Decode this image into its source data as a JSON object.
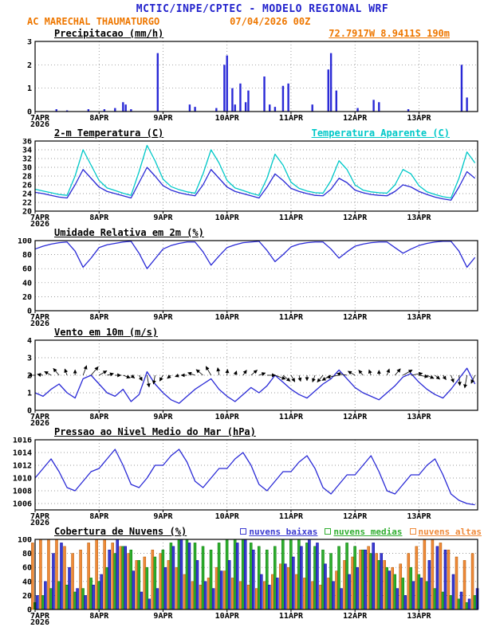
{
  "header": {
    "title": "MCTIC/INPE/CPTEC - MODELO REGIONAL WRF",
    "station": "AC MARECHAL THAUMATURGO",
    "run": "07/04/2026 00Z"
  },
  "colors": {
    "header_blue": "#2222cc",
    "orange": "#ee7700",
    "line_blue": "#2929d6",
    "cyan": "#00c8c8",
    "cloud_low": "#3b3bd1",
    "cloud_low_edge": "#000099",
    "cloud_mid": "#2fae2f",
    "cloud_mid_edge": "#007700",
    "cloud_high": "#ef8a3a",
    "cloud_high_edge": "#b35900"
  },
  "x_axis": {
    "range": [
      0,
      166
    ],
    "ticks": [
      0,
      24,
      48,
      72,
      96,
      120,
      144
    ],
    "tick_labels": [
      "7APR",
      "8APR",
      "9APR",
      "10APR",
      "11APR",
      "12APR",
      "13APR"
    ],
    "year_label": "2026",
    "grid": "dotted"
  },
  "chart_data": [
    {
      "type": "bar",
      "title": "Precipitacao (mm/h)",
      "right_label": "72.7917W 8.9411S 190m",
      "ylim": [
        0,
        3
      ],
      "yticks": [
        0,
        1,
        2,
        3
      ],
      "bar_color": "#2929d6",
      "x_hours": [
        8,
        12,
        20,
        26,
        30,
        33,
        34,
        36,
        46,
        58,
        60,
        68,
        71,
        72,
        74,
        75,
        77,
        79,
        80,
        86,
        88,
        90,
        93,
        95,
        104,
        110,
        111,
        113,
        121,
        127,
        129,
        140,
        160,
        162
      ],
      "values": [
        0.1,
        0.05,
        0.1,
        0.1,
        0.15,
        0.4,
        0.3,
        0.1,
        2.5,
        0.3,
        0.2,
        0.15,
        2.0,
        2.4,
        1.0,
        0.3,
        1.2,
        0.4,
        0.9,
        1.5,
        0.3,
        0.2,
        1.1,
        1.2,
        0.3,
        1.8,
        2.5,
        0.9,
        0.15,
        0.5,
        0.4,
        0.1,
        2.0,
        0.6
      ]
    },
    {
      "type": "line",
      "title": "2-m Temperatura (C)",
      "right_label": "Temperatura Aparente (C)",
      "ylim": [
        20,
        36
      ],
      "yticks": [
        20,
        22,
        24,
        26,
        28,
        30,
        32,
        34,
        36
      ],
      "x_step": 3,
      "series": [
        {
          "name": "2-m Temperatura (C)",
          "color": "#2929d6",
          "values": [
            24.3,
            24.0,
            23.6,
            23.2,
            23.0,
            26.0,
            29.5,
            27.5,
            25.5,
            24.5,
            24.0,
            23.5,
            23.0,
            26.5,
            30.0,
            28.0,
            25.8,
            24.8,
            24.2,
            23.8,
            23.5,
            26.0,
            29.5,
            27.5,
            25.5,
            24.5,
            24.0,
            23.5,
            23.0,
            25.5,
            28.5,
            27.0,
            25.2,
            24.5,
            24.0,
            23.6,
            23.5,
            25.0,
            27.5,
            26.5,
            24.8,
            24.2,
            23.8,
            23.6,
            23.5,
            24.5,
            26.0,
            25.5,
            24.5,
            23.8,
            23.2,
            22.8,
            22.5,
            25.5,
            29.0,
            27.5
          ]
        },
        {
          "name": "Temperatura Aparente (C)",
          "color": "#00c8c8",
          "values": [
            25.0,
            24.6,
            24.2,
            23.8,
            23.6,
            28.0,
            34.0,
            30.5,
            27.0,
            25.3,
            24.7,
            24.1,
            23.6,
            29.0,
            35.0,
            31.5,
            27.3,
            25.6,
            24.9,
            24.4,
            24.1,
            28.5,
            34.0,
            31.0,
            27.0,
            25.3,
            24.7,
            24.1,
            23.6,
            27.5,
            33.0,
            30.5,
            26.6,
            25.2,
            24.6,
            24.2,
            24.1,
            27.0,
            31.5,
            29.5,
            26.0,
            24.8,
            24.4,
            24.2,
            24.1,
            26.0,
            29.5,
            28.5,
            25.8,
            24.4,
            23.8,
            23.3,
            23.0,
            27.5,
            33.5,
            31.0
          ]
        }
      ]
    },
    {
      "type": "line",
      "title": "Umidade Relativa em 2m (%)",
      "right_label": "",
      "ylim": [
        0,
        100
      ],
      "yticks": [
        0,
        20,
        40,
        60,
        80,
        100
      ],
      "x_step": 3,
      "series": [
        {
          "name": "Umidade Relativa",
          "color": "#2929d6",
          "values": [
            88,
            92,
            95,
            97,
            98,
            85,
            62,
            75,
            90,
            94,
            96,
            98,
            99,
            82,
            60,
            74,
            88,
            93,
            96,
            98,
            98,
            84,
            65,
            78,
            90,
            94,
            97,
            98,
            99,
            86,
            70,
            80,
            91,
            95,
            97,
            98,
            98,
            88,
            75,
            84,
            92,
            95,
            97,
            98,
            98,
            90,
            82,
            88,
            93,
            96,
            98,
            99,
            99,
            85,
            62,
            76
          ]
        }
      ]
    },
    {
      "type": "wind",
      "title": "Vento em 10m (m/s)",
      "right_label": "",
      "ylim": [
        0,
        4
      ],
      "yticks": [
        0,
        1,
        2,
        3,
        4
      ],
      "x_step": 3,
      "arrow_anchor": 2.0,
      "dirs": [
        90,
        100,
        120,
        140,
        160,
        180,
        200,
        220,
        240,
        255,
        270,
        290,
        310,
        330,
        350,
        10,
        30,
        50,
        70,
        90,
        110,
        130,
        150,
        170,
        185,
        200,
        215,
        230,
        250,
        270,
        290,
        310,
        330,
        345,
        0,
        20,
        40,
        60,
        80,
        100,
        120,
        140,
        160,
        180,
        200,
        220,
        240,
        260,
        280,
        295,
        310,
        325,
        340,
        355,
        10,
        25
      ],
      "series": [
        {
          "name": "Velocidade do Vento",
          "color": "#2929d6",
          "values": [
            1.0,
            0.8,
            1.2,
            1.5,
            1.0,
            0.7,
            1.8,
            2.0,
            1.5,
            1.0,
            0.8,
            1.2,
            0.5,
            0.9,
            2.2,
            1.5,
            1.0,
            0.6,
            0.4,
            0.8,
            1.2,
            1.5,
            1.8,
            1.2,
            0.8,
            0.5,
            0.9,
            1.3,
            1.0,
            1.4,
            2.0,
            1.6,
            1.2,
            0.9,
            0.7,
            1.1,
            1.5,
            1.8,
            2.3,
            1.8,
            1.3,
            1.0,
            0.8,
            0.6,
            1.0,
            1.4,
            1.9,
            2.1,
            1.6,
            1.2,
            0.9,
            0.7,
            1.2,
            1.8,
            2.4,
            1.5
          ]
        }
      ]
    },
    {
      "type": "line",
      "title": "Pressao ao Nivel Medio do Mar (hPa)",
      "right_label": "",
      "ylim": [
        1005,
        1016
      ],
      "yticks": [
        1006,
        1008,
        1010,
        1012,
        1014,
        1016
      ],
      "x_step": 3,
      "series": [
        {
          "name": "Pressao ao Nivel Medio do Mar",
          "color": "#2929d6",
          "values": [
            1010.0,
            1011.5,
            1013.0,
            1011.0,
            1008.5,
            1008.0,
            1009.5,
            1011.0,
            1011.5,
            1013.0,
            1014.5,
            1012.0,
            1009.0,
            1008.5,
            1010.0,
            1012.0,
            1012.0,
            1013.5,
            1014.5,
            1012.5,
            1009.5,
            1008.5,
            1010.0,
            1011.5,
            1011.5,
            1013.0,
            1014.0,
            1012.0,
            1009.0,
            1008.0,
            1009.5,
            1011.0,
            1011.0,
            1012.5,
            1013.5,
            1011.5,
            1008.5,
            1007.5,
            1009.0,
            1010.5,
            1010.5,
            1012.0,
            1013.5,
            1011.0,
            1008.0,
            1007.5,
            1009.0,
            1010.5,
            1010.5,
            1012.0,
            1013.0,
            1010.5,
            1007.5,
            1006.5,
            1006.0,
            1005.8
          ]
        }
      ]
    },
    {
      "type": "grouped_bar",
      "title": "Cobertura de Nuvens (%)",
      "right_label": "",
      "ylim": [
        0,
        100
      ],
      "yticks": [
        0,
        20,
        40,
        60,
        80,
        100
      ],
      "x_step": 3,
      "series": [
        {
          "label": "nuvens baixas",
          "color": "#3b3bd1",
          "edge": "#000099",
          "values": [
            20,
            40,
            80,
            95,
            60,
            30,
            20,
            35,
            50,
            85,
            100,
            90,
            55,
            25,
            15,
            30,
            60,
            90,
            100,
            95,
            70,
            40,
            30,
            55,
            70,
            95,
            100,
            85,
            50,
            35,
            45,
            65,
            75,
            90,
            100,
            95,
            65,
            40,
            30,
            50,
            60,
            85,
            95,
            80,
            55,
            30,
            20,
            40,
            45,
            70,
            90,
            85,
            50,
            25,
            15,
            30
          ]
        },
        {
          "label": "nuvens medias",
          "color": "#2fae2f",
          "edge": "#007700",
          "values": [
            10,
            20,
            30,
            40,
            35,
            25,
            30,
            45,
            40,
            60,
            80,
            90,
            85,
            70,
            60,
            75,
            85,
            95,
            100,
            100,
            95,
            90,
            85,
            95,
            100,
            100,
            100,
            95,
            90,
            85,
            90,
            100,
            100,
            100,
            95,
            90,
            85,
            80,
            90,
            95,
            90,
            85,
            80,
            70,
            60,
            50,
            45,
            60,
            50,
            40,
            30,
            25,
            20,
            15,
            10,
            20
          ]
        },
        {
          "label": "nuvens altas",
          "color": "#ef8a3a",
          "edge": "#b35900",
          "values": [
            95,
            100,
            100,
            100,
            90,
            80,
            85,
            95,
            100,
            100,
            95,
            90,
            80,
            70,
            75,
            85,
            80,
            70,
            60,
            50,
            40,
            35,
            45,
            60,
            55,
            45,
            40,
            35,
            30,
            40,
            50,
            65,
            60,
            50,
            45,
            40,
            35,
            45,
            55,
            70,
            75,
            85,
            90,
            80,
            70,
            60,
            65,
            80,
            90,
            100,
            100,
            95,
            85,
            75,
            70,
            80
          ]
        }
      ]
    }
  ]
}
